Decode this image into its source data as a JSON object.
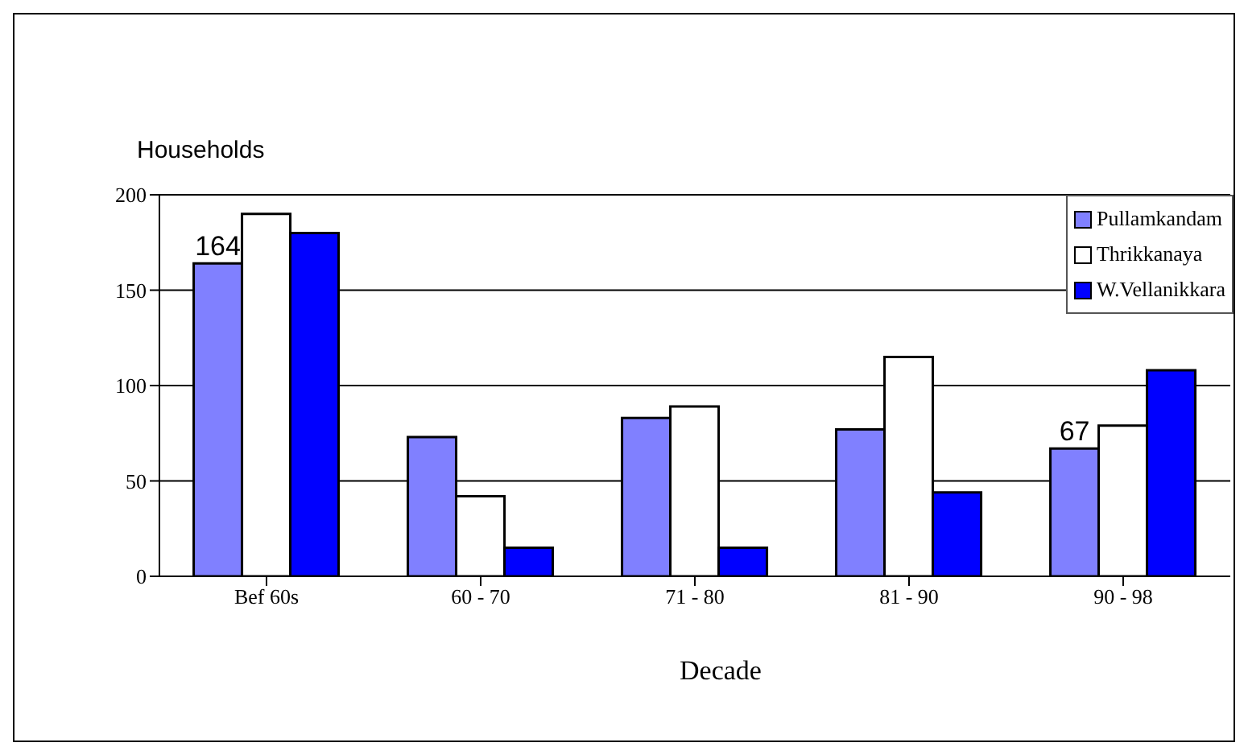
{
  "chart_data": {
    "type": "bar",
    "xlabel": "Decade",
    "ylabel": "Households",
    "categories": [
      "Bef 60s",
      "60 - 70",
      "71 - 80",
      "81 - 90",
      "90 - 98"
    ],
    "series": [
      {
        "name": "Pullamkandam",
        "color": "#8080ff",
        "values": [
          164,
          73,
          83,
          77,
          67
        ],
        "value_labels": [
          "164",
          null,
          null,
          null,
          "67"
        ]
      },
      {
        "name": "Thrikkanaya",
        "color": "#ffffff",
        "values": [
          190,
          42,
          89,
          115,
          79
        ]
      },
      {
        "name": "W.Vellanikkara",
        "color": "#0000ff",
        "values": [
          180,
          15,
          15,
          44,
          108
        ]
      }
    ],
    "ylim": [
      0,
      200
    ],
    "yticks": [
      0,
      50,
      100,
      150,
      200
    ],
    "grid": "y",
    "legend": "top right"
  }
}
